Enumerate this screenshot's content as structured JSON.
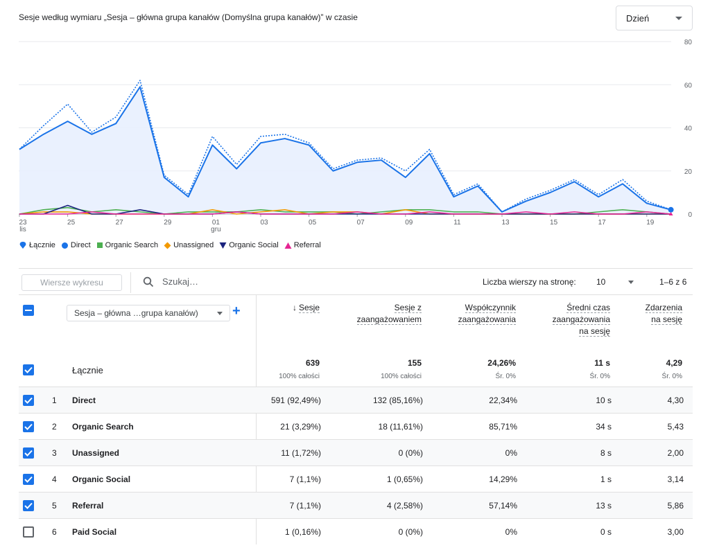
{
  "header": {
    "title": "Sesje według wymiaru „Sesja – główna grupa kanałów (Domyślna grupa kanałów)” w czasie",
    "granularity": "Dzień"
  },
  "chart_data": {
    "type": "line",
    "y_ticks": [
      "80",
      "60",
      "40",
      "20",
      "0"
    ],
    "ylim": [
      0,
      80
    ],
    "x_ticks": [
      {
        "day": 23,
        "label": "23",
        "sub": "lis"
      },
      {
        "day": 25,
        "label": "25",
        "sub": ""
      },
      {
        "day": 27,
        "label": "27",
        "sub": ""
      },
      {
        "day": 29,
        "label": "29",
        "sub": ""
      },
      {
        "day": 31,
        "label": "01",
        "sub": "gru"
      },
      {
        "day": 33,
        "label": "03",
        "sub": ""
      },
      {
        "day": 35,
        "label": "05",
        "sub": ""
      },
      {
        "day": 37,
        "label": "07",
        "sub": ""
      },
      {
        "day": 39,
        "label": "09",
        "sub": ""
      },
      {
        "day": 41,
        "label": "11",
        "sub": ""
      },
      {
        "day": 43,
        "label": "13",
        "sub": ""
      },
      {
        "day": 45,
        "label": "15",
        "sub": ""
      },
      {
        "day": 47,
        "label": "17",
        "sub": ""
      },
      {
        "day": 49,
        "label": "19",
        "sub": ""
      }
    ],
    "x_dates": [
      "23 lis",
      "24 lis",
      "25 lis",
      "26 lis",
      "27 lis",
      "28 lis",
      "29 lis",
      "30 lis",
      "01 gru",
      "02 gru",
      "03 gru",
      "04 gru",
      "05 gru",
      "06 gru",
      "07 gru",
      "08 gru",
      "09 gru",
      "10 gru",
      "11 gru",
      "12 gru",
      "13 gru",
      "14 gru",
      "15 gru",
      "16 gru",
      "17 gru",
      "18 gru",
      "19 gru",
      "20 gru"
    ],
    "series": [
      {
        "name": "Łącznie",
        "color": "#1a73e8",
        "style": "dotted",
        "values": [
          30,
          41,
          51,
          38,
          45,
          62,
          18,
          9,
          36,
          23,
          36,
          37,
          33,
          21,
          25,
          26,
          20,
          30,
          9,
          14,
          1,
          7,
          11,
          16,
          9,
          16,
          6,
          2
        ]
      },
      {
        "name": "Direct",
        "color": "#1a73e8",
        "style": "solid-fill",
        "values": [
          30,
          37,
          43,
          37,
          42,
          59,
          17,
          8,
          32,
          21,
          33,
          35,
          32,
          20,
          24,
          25,
          17,
          28,
          8,
          13,
          1,
          6,
          10,
          15,
          8,
          14,
          5,
          2
        ]
      },
      {
        "name": "Organic Search",
        "color": "#4caf50",
        "style": "solid",
        "values": [
          0,
          2,
          3,
          1,
          2,
          1,
          0,
          1,
          1,
          1,
          2,
          1,
          1,
          1,
          0,
          1,
          2,
          2,
          1,
          1,
          0,
          0,
          0,
          0,
          1,
          2,
          1,
          0
        ]
      },
      {
        "name": "Unassigned",
        "color": "#f29900",
        "style": "solid",
        "values": [
          0,
          1,
          1,
          0,
          0,
          0,
          0,
          0,
          2,
          0,
          1,
          2,
          0,
          1,
          1,
          0,
          2,
          0,
          0,
          0,
          0,
          0,
          0,
          0,
          0,
          0,
          0,
          0
        ]
      },
      {
        "name": "Organic Social",
        "color": "#1a237e",
        "style": "solid",
        "values": [
          0,
          0,
          4,
          0,
          0,
          2,
          0,
          0,
          0,
          1,
          0,
          0,
          0,
          0,
          0,
          0,
          0,
          0,
          0,
          0,
          0,
          0,
          0,
          0,
          0,
          0,
          0,
          0
        ]
      },
      {
        "name": "Referral",
        "color": "#e52592",
        "style": "solid",
        "values": [
          0,
          0,
          0,
          1,
          0,
          0,
          0,
          0,
          0,
          1,
          0,
          0,
          0,
          0,
          1,
          0,
          0,
          1,
          0,
          0,
          0,
          1,
          0,
          1,
          0,
          0,
          1,
          0
        ]
      }
    ]
  },
  "legend": [
    "Łącznie",
    "Direct",
    "Organic Search",
    "Unassigned",
    "Organic Social",
    "Referral"
  ],
  "toolbar": {
    "chart_rows_label": "Wiersze wykresu",
    "search_placeholder": "Szukaj…",
    "rows_per_page_label": "Liczba wierszy na stronę:",
    "rows_per_page_value": "10",
    "pagination": "1–6 z 6"
  },
  "table": {
    "dimension_label": "Sesja – główna …grupa kanałów)",
    "headers": {
      "sessions": "Sesje",
      "engaged_1": "Sesje z",
      "engaged_2": "zaangażowaniem",
      "rate_1": "Współczynnik",
      "rate_2": "zaangażowania",
      "avg_1": "Średni czas",
      "avg_2": "zaangażowania",
      "avg_3": "na sesję",
      "events_1": "Zdarzenia",
      "events_2": "na sesję"
    },
    "totals": {
      "label": "Łącznie",
      "sessions": "639",
      "sessions_sub": "100% całości",
      "engaged": "155",
      "engaged_sub": "100% całości",
      "rate": "24,26%",
      "rate_sub": "Śr. 0%",
      "avg": "11 s",
      "avg_sub": "Śr. 0%",
      "events": "4,29",
      "events_sub": "Śr. 0%"
    },
    "rows": [
      {
        "idx": "1",
        "name": "Direct",
        "sessions": "591 (92,49%)",
        "engaged": "132 (85,16%)",
        "rate": "22,34%",
        "avg": "10 s",
        "events": "4,30",
        "checked": true
      },
      {
        "idx": "2",
        "name": "Organic Search",
        "sessions": "21 (3,29%)",
        "engaged": "18 (11,61%)",
        "rate": "85,71%",
        "avg": "34 s",
        "events": "5,43",
        "checked": true
      },
      {
        "idx": "3",
        "name": "Unassigned",
        "sessions": "11 (1,72%)",
        "engaged": "0 (0%)",
        "rate": "0%",
        "avg": "8 s",
        "events": "2,00",
        "checked": true
      },
      {
        "idx": "4",
        "name": "Organic Social",
        "sessions": "7 (1,1%)",
        "engaged": "1 (0,65%)",
        "rate": "14,29%",
        "avg": "1 s",
        "events": "3,14",
        "checked": true
      },
      {
        "idx": "5",
        "name": "Referral",
        "sessions": "7 (1,1%)",
        "engaged": "4 (2,58%)",
        "rate": "57,14%",
        "avg": "13 s",
        "events": "5,86",
        "checked": true
      },
      {
        "idx": "6",
        "name": "Paid Social",
        "sessions": "1 (0,16%)",
        "engaged": "0 (0%)",
        "rate": "0%",
        "avg": "0 s",
        "events": "3,00",
        "checked": false
      }
    ]
  }
}
